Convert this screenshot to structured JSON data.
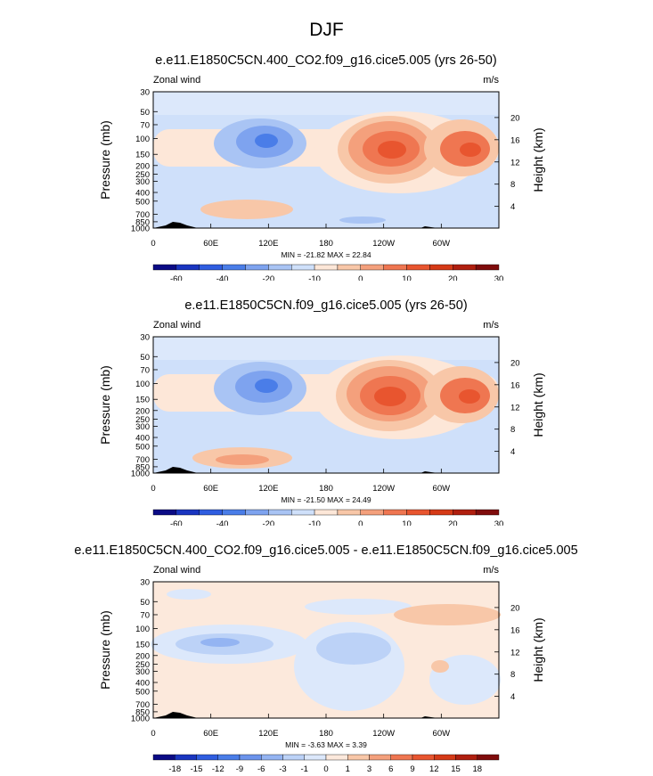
{
  "figure": {
    "title": "DJF"
  },
  "chart_data": [
    {
      "type": "heatmap",
      "title": "e.e11.E1850C5CN.400_CO2.f09_g16.cice5.005 (yrs 26-50)",
      "field_label": "Zonal wind",
      "units": "m/s",
      "ylabel": "Pressure (mb)",
      "ylabel_right": "Height (km)",
      "x_ticks": [
        "0",
        "60E",
        "120E",
        "180",
        "120W",
        "60W"
      ],
      "y_ticks": [
        "30",
        "50",
        "70",
        "100",
        "150",
        "200",
        "250",
        "300",
        "400",
        "500",
        "700",
        "850",
        "1000"
      ],
      "height_ticks": [
        "20",
        "16",
        "12",
        "8",
        "4"
      ],
      "stats": "MIN = -21.82  MAX =  22.84",
      "min": -21.82,
      "max": 22.84,
      "colorbar_labels": [
        "-60",
        "-40",
        "-20",
        "-10",
        "0",
        "10",
        "20",
        "30"
      ],
      "colorbar_colors": [
        "#0b0b85",
        "#1a35c0",
        "#2f5de0",
        "#4a7de8",
        "#7ea3ef",
        "#a9c4f4",
        "#cfe0fa",
        "#fde7d8",
        "#f8c7a8",
        "#f4a07c",
        "#ef7651",
        "#e8552f",
        "#d53a17",
        "#b01f0f",
        "#7f0c0c"
      ]
    },
    {
      "type": "heatmap",
      "title": "e.e11.E1850C5CN.f09_g16.cice5.005 (yrs 26-50)",
      "field_label": "Zonal wind",
      "units": "m/s",
      "ylabel": "Pressure (mb)",
      "ylabel_right": "Height (km)",
      "x_ticks": [
        "0",
        "60E",
        "120E",
        "180",
        "120W",
        "60W"
      ],
      "y_ticks": [
        "30",
        "50",
        "70",
        "100",
        "150",
        "200",
        "250",
        "300",
        "400",
        "500",
        "700",
        "850",
        "1000"
      ],
      "height_ticks": [
        "20",
        "16",
        "12",
        "8",
        "4"
      ],
      "stats": "MIN = -21.50  MAX =  24.49",
      "min": -21.5,
      "max": 24.49,
      "colorbar_labels": [
        "-60",
        "-40",
        "-20",
        "-10",
        "0",
        "10",
        "20",
        "30"
      ],
      "colorbar_colors": [
        "#0b0b85",
        "#1a35c0",
        "#2f5de0",
        "#4a7de8",
        "#7ea3ef",
        "#a9c4f4",
        "#cfe0fa",
        "#fde7d8",
        "#f8c7a8",
        "#f4a07c",
        "#ef7651",
        "#e8552f",
        "#d53a17",
        "#b01f0f",
        "#7f0c0c"
      ]
    },
    {
      "type": "heatmap",
      "title": "e.e11.E1850C5CN.400_CO2.f09_g16.cice5.005 - e.e11.E1850C5CN.f09_g16.cice5.005",
      "field_label": "Zonal wind",
      "units": "m/s",
      "ylabel": "Pressure (mb)",
      "ylabel_right": "Height (km)",
      "x_ticks": [
        "0",
        "60E",
        "120E",
        "180",
        "120W",
        "60W"
      ],
      "y_ticks": [
        "30",
        "50",
        "70",
        "100",
        "150",
        "200",
        "250",
        "300",
        "400",
        "500",
        "700",
        "850",
        "1000"
      ],
      "height_ticks": [
        "20",
        "16",
        "12",
        "8",
        "4"
      ],
      "stats": "MIN = -3.63  MAX =  3.39",
      "min": -3.63,
      "max": 3.39,
      "colorbar_labels": [
        "-18",
        "-15",
        "-12",
        "-9",
        "-6",
        "-3",
        "-1",
        "0",
        "1",
        "3",
        "6",
        "9",
        "12",
        "15",
        "18"
      ],
      "colorbar_colors": [
        "#0b0b85",
        "#1a35c0",
        "#2f5de0",
        "#4a7de8",
        "#6b93ec",
        "#94b4f2",
        "#bcd2f7",
        "#dce8fb",
        "#fce9dc",
        "#f8c7a8",
        "#f4a07c",
        "#ef7651",
        "#e8552f",
        "#d53a17",
        "#b01f0f",
        "#7f0c0c"
      ]
    }
  ]
}
